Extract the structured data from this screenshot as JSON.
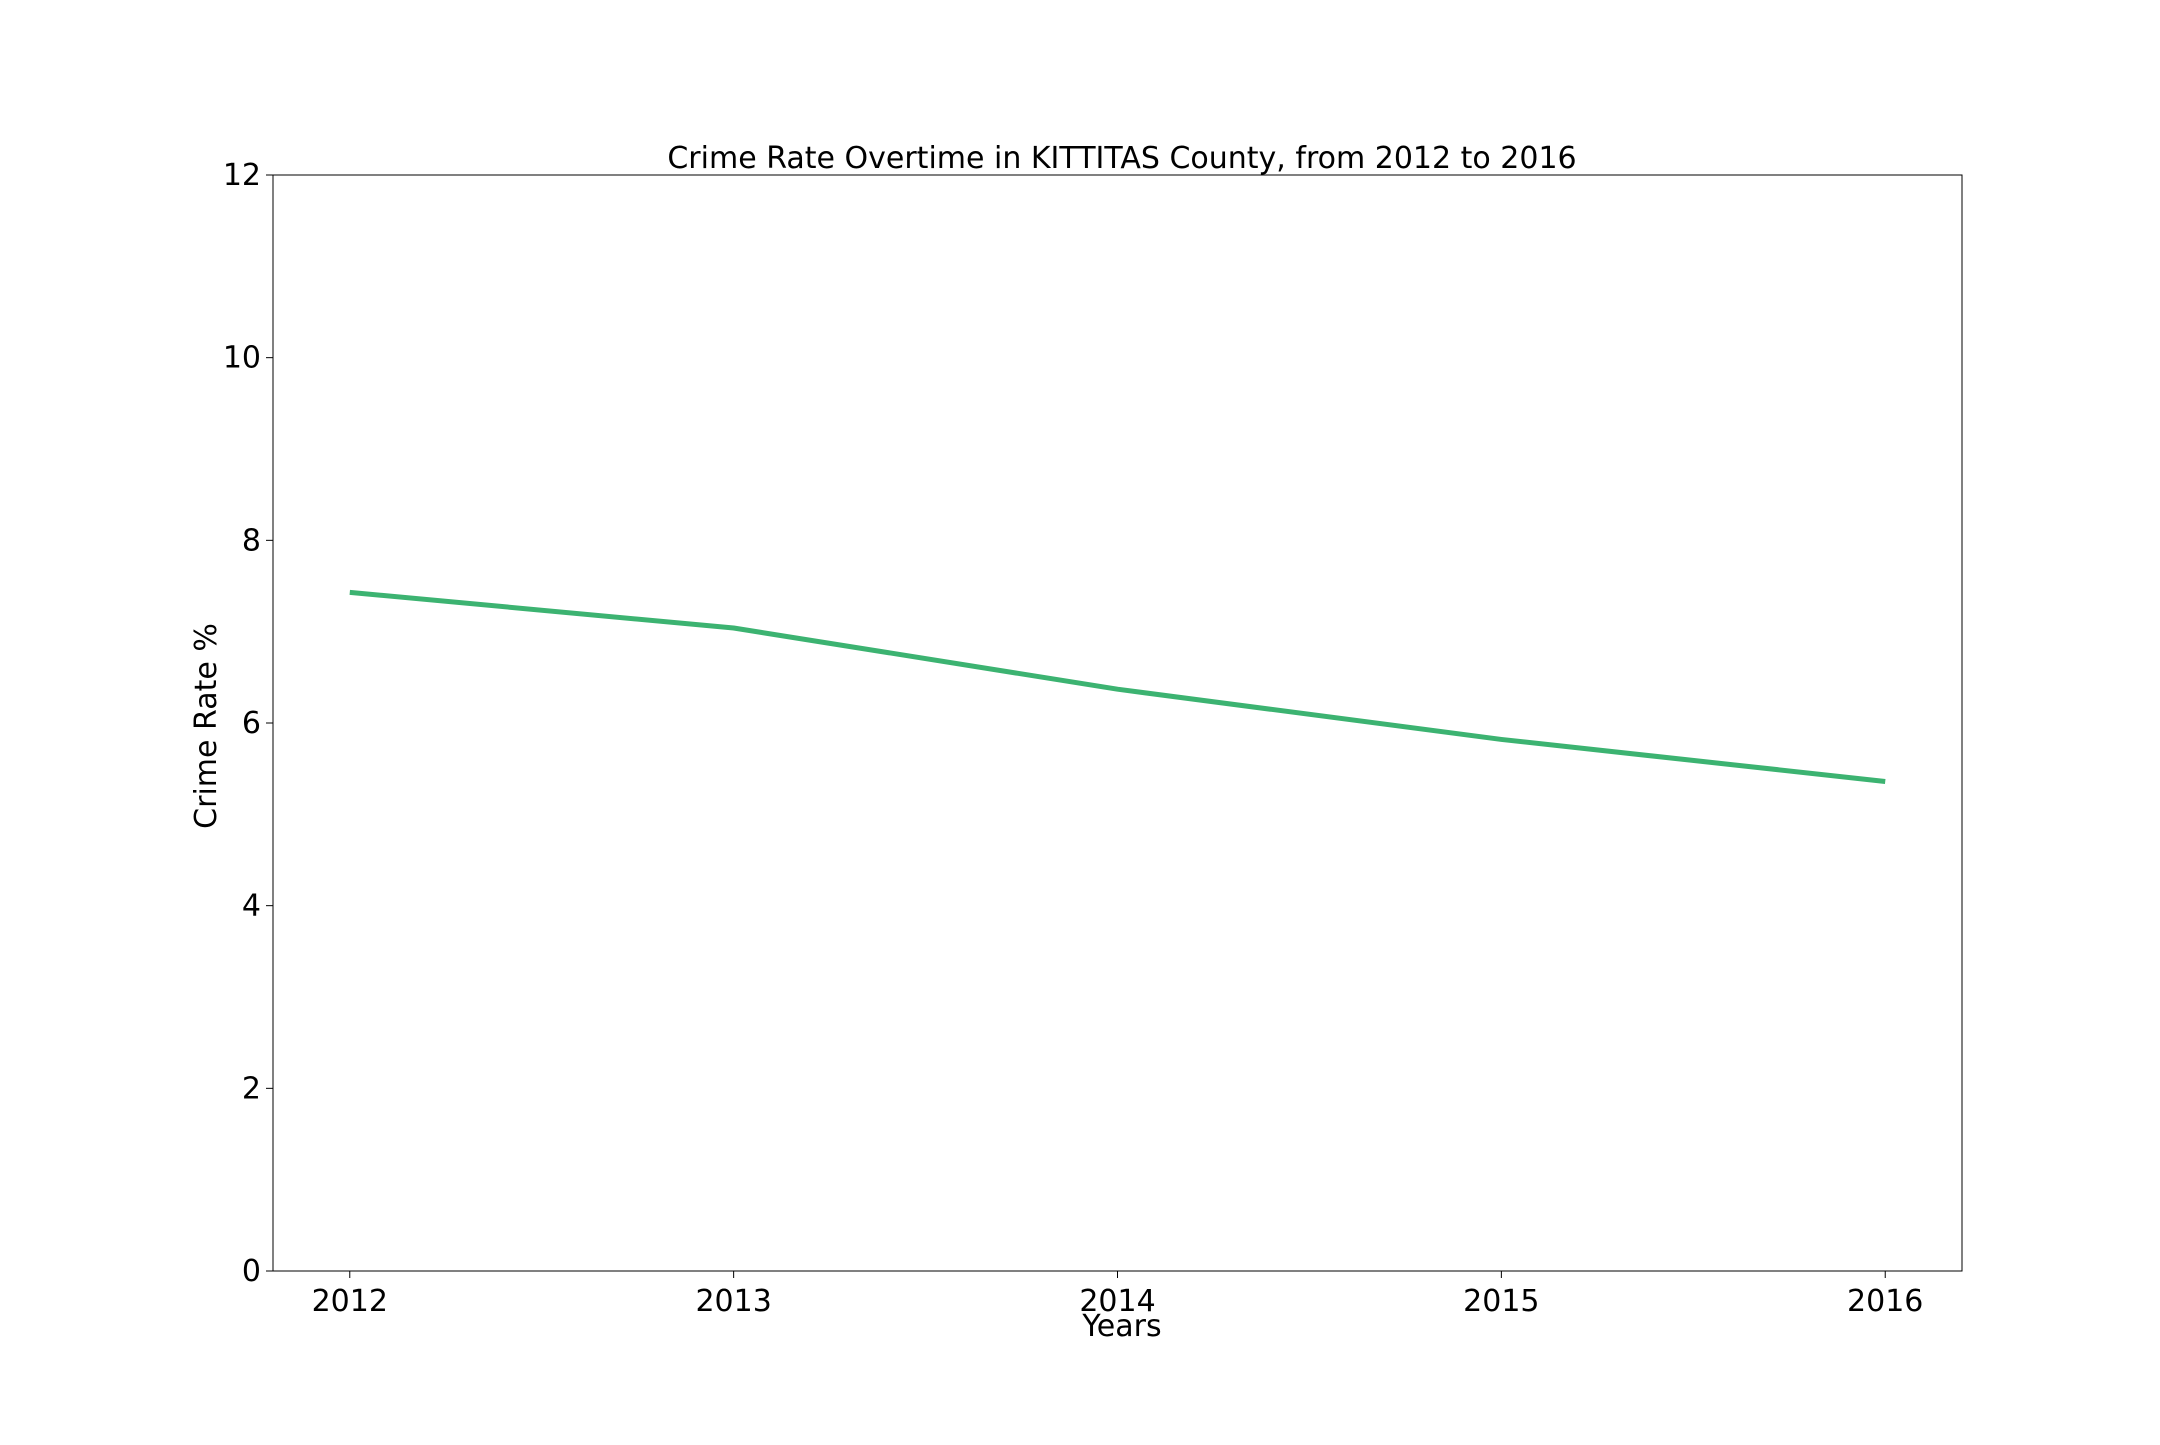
{
  "chart_data": {
    "type": "line",
    "title": "Crime Rate Overtime in KITTITAS County, from 2012 to 2016",
    "xlabel": "Years",
    "ylabel": "Crime Rate %",
    "x": [
      2012,
      2013,
      2014,
      2015,
      2016
    ],
    "x_tick_labels": [
      "2012",
      "2013",
      "2014",
      "2015",
      "2016"
    ],
    "xlim": [
      2011.8,
      2016.2
    ],
    "ylim": [
      0,
      12
    ],
    "y_ticks": [
      0,
      2,
      4,
      6,
      8,
      10,
      12
    ],
    "y_tick_labels": [
      "0",
      "2",
      "4",
      "6",
      "8",
      "10",
      "12"
    ],
    "grid": false,
    "series": [
      {
        "values": [
          7.43,
          7.04,
          6.37,
          5.82,
          5.36
        ],
        "color": "#3cb371"
      }
    ]
  }
}
